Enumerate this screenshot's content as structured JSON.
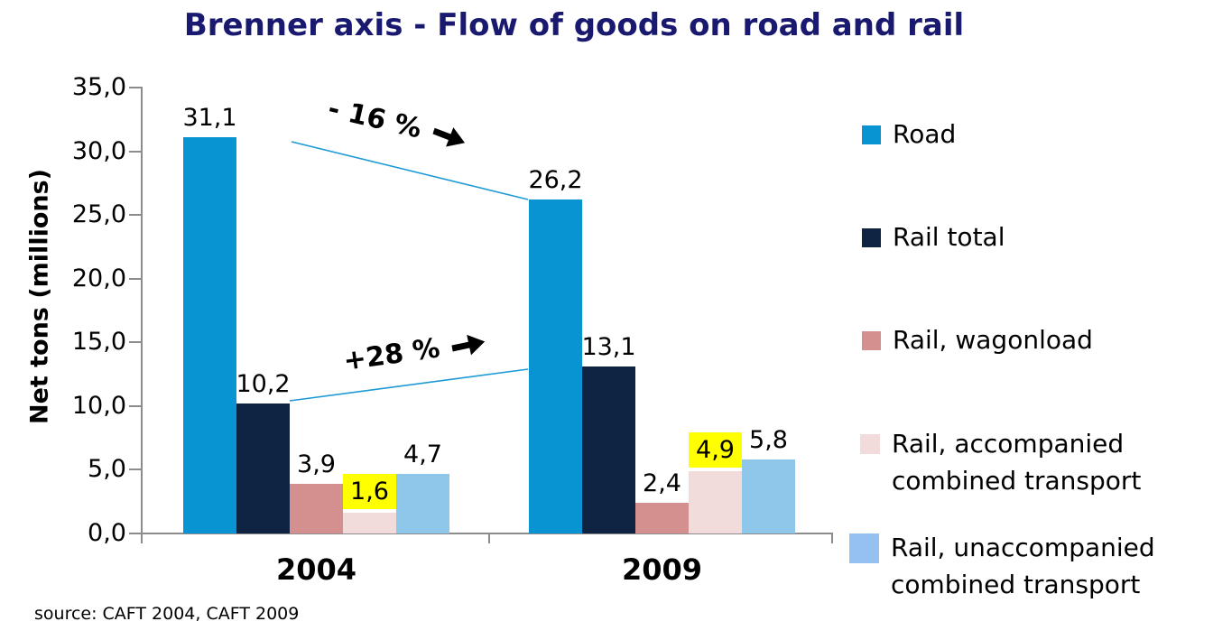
{
  "title": "Brenner axis - Flow of goods on road and rail",
  "source_note": "source: CAFT 2004, CAFT 2009",
  "colors": {
    "title": "#191970",
    "axis": "#8c8c8c",
    "label_highlight": "#ffff00",
    "connector_line": "#1c9ad6",
    "text": "#000000"
  },
  "chart_data": {
    "type": "bar",
    "title": "Brenner axis - Flow of goods on road and rail",
    "xlabel": "",
    "ylabel": "Net tons (millions)",
    "ylim": [
      0,
      35
    ],
    "ytick_step": 5,
    "ytick_labels": [
      "0,0",
      "5,0",
      "10,0",
      "15,0",
      "20,0",
      "25,0",
      "30,0",
      "35,0"
    ],
    "grid": false,
    "legend_position": "right",
    "categories": [
      "2004",
      "2009"
    ],
    "series": [
      {
        "name": "Road",
        "color": "#0893d2",
        "legend_color": "#0893d2",
        "values": [
          31.1,
          26.2
        ],
        "labels": [
          "31,1",
          "26,2"
        ],
        "label_highlight": false
      },
      {
        "name": "Rail total",
        "color": "#0e2442",
        "legend_color": "#0e2442",
        "values": [
          10.2,
          13.1
        ],
        "labels": [
          "10,2",
          "13,1"
        ],
        "label_highlight": false
      },
      {
        "name": "Rail, wagonload",
        "color": "#d4908f",
        "legend_color": "#d4908f",
        "values": [
          3.9,
          2.4
        ],
        "labels": [
          "3,9",
          "2,4"
        ],
        "label_highlight": false
      },
      {
        "name": "Rail, accompanied combined transport",
        "color": "#f2dcdb",
        "legend_color": "#f2dcdb",
        "values": [
          1.6,
          4.9
        ],
        "labels": [
          "1,6",
          "4,9"
        ],
        "label_highlight": true
      },
      {
        "name": "Rail, unaccompanied combined transport",
        "color": "#8ec7e9",
        "legend_color": "#95c1f0",
        "values": [
          4.7,
          5.8
        ],
        "labels": [
          "4,7",
          "5,8"
        ],
        "label_highlight": false
      }
    ],
    "annotations": [
      {
        "text": "- 16 %",
        "refers_to": "Road change 2004 to 2009",
        "direction": "down"
      },
      {
        "text": "+28 %",
        "refers_to": "Rail total change 2004 to 2009",
        "direction": "up"
      }
    ]
  }
}
